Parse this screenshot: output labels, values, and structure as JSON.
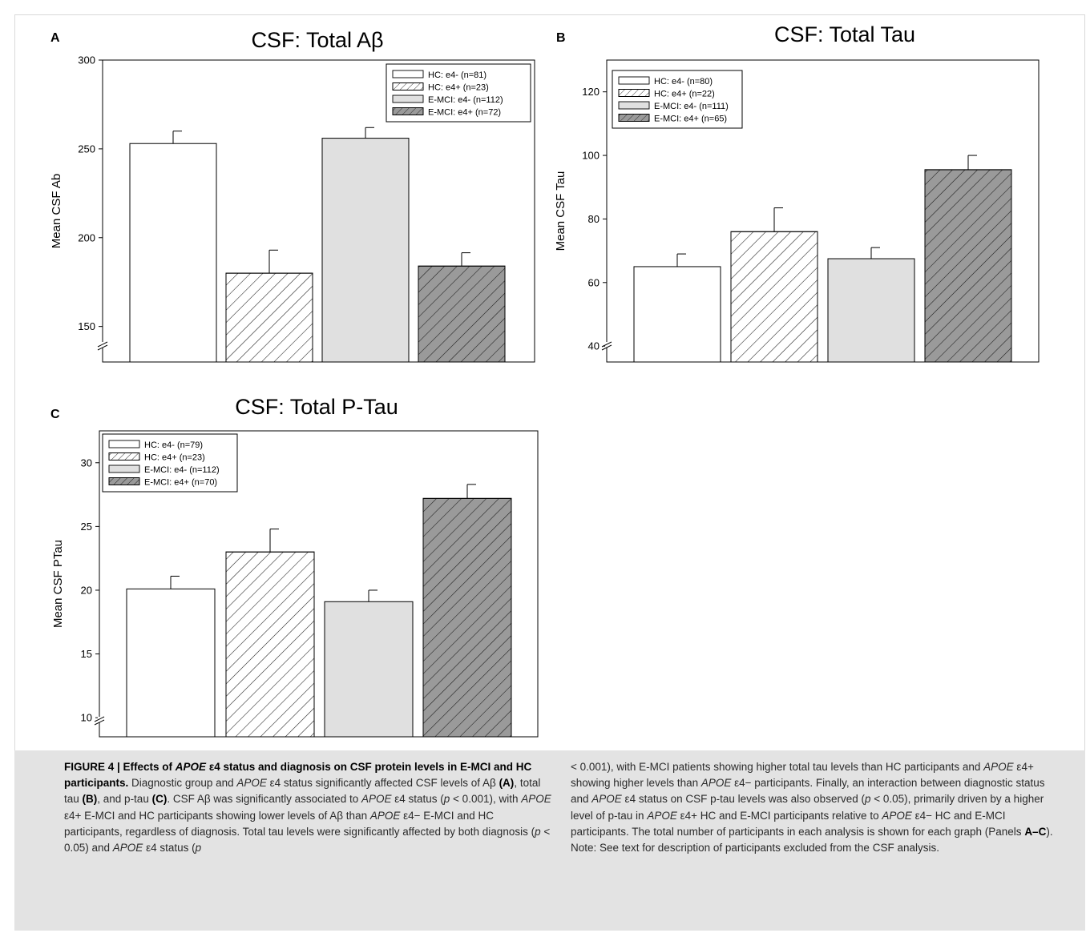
{
  "colors": {
    "hc_e4neg": "#ffffff",
    "hc_e4pos": "#ffffff",
    "emci_e4neg": "#e0e0e0",
    "emci_e4pos": "#9a9a9a",
    "hatch": "#1a1a1a",
    "caption_bg": "#e3e3e3"
  },
  "chart_data": [
    {
      "type": "bar",
      "panel": "A",
      "title": "CSF: Total Aβ",
      "xlabel": "",
      "ylabel": "Mean CSF Ab",
      "ylim": [
        130,
        300
      ],
      "yticks": [
        150,
        200,
        250,
        300
      ],
      "axis_break": true,
      "grid": false,
      "legend_position": "top-right",
      "series": [
        {
          "name": "HC: e4- (n=81)",
          "value": 253,
          "error": 7,
          "fill": "hc_e4neg",
          "hatch": false
        },
        {
          "name": "HC: e4+ (n=23)",
          "value": 180,
          "error": 13,
          "fill": "hc_e4pos",
          "hatch": true
        },
        {
          "name": "E-MCI: e4- (n=112)",
          "value": 256,
          "error": 6,
          "fill": "emci_e4neg",
          "hatch": false
        },
        {
          "name": "E-MCI: e4+ (n=72)",
          "value": 184,
          "error": 7.5,
          "fill": "emci_e4pos",
          "hatch": true
        }
      ]
    },
    {
      "type": "bar",
      "panel": "B",
      "title": "CSF: Total Tau",
      "xlabel": "",
      "ylabel": "Mean CSF Tau",
      "ylim": [
        35,
        130
      ],
      "yticks": [
        40,
        60,
        80,
        100,
        120
      ],
      "axis_break": true,
      "grid": false,
      "legend_position": "top-left",
      "series": [
        {
          "name": "HC: e4- (n=80)",
          "value": 65,
          "error": 4,
          "fill": "hc_e4neg",
          "hatch": false
        },
        {
          "name": "HC: e4+ (n=22)",
          "value": 76,
          "error": 7.5,
          "fill": "hc_e4pos",
          "hatch": true
        },
        {
          "name": "E-MCI: e4- (n=111)",
          "value": 67.5,
          "error": 3.5,
          "fill": "emci_e4neg",
          "hatch": false
        },
        {
          "name": "E-MCI: e4+ (n=65)",
          "value": 95.5,
          "error": 4.5,
          "fill": "emci_e4pos",
          "hatch": true
        }
      ]
    },
    {
      "type": "bar",
      "panel": "C",
      "title": "CSF: Total P-Tau",
      "xlabel": "",
      "ylabel": "Mean CSF PTau",
      "ylim": [
        8.5,
        32.5
      ],
      "yticks": [
        10,
        15,
        20,
        25,
        30
      ],
      "axis_break": true,
      "grid": false,
      "legend_position": "top-left",
      "series": [
        {
          "name": "HC: e4- (n=79)",
          "value": 20.1,
          "error": 1,
          "fill": "hc_e4neg",
          "hatch": false
        },
        {
          "name": "HC: e4+ (n=23)",
          "value": 23,
          "error": 1.8,
          "fill": "hc_e4pos",
          "hatch": true
        },
        {
          "name": "E-MCI: e4- (n=112)",
          "value": 19.1,
          "error": 0.9,
          "fill": "emci_e4neg",
          "hatch": false
        },
        {
          "name": "E-MCI: e4+ (n=70)",
          "value": 27.2,
          "error": 1.1,
          "fill": "emci_e4pos",
          "hatch": true
        }
      ]
    }
  ],
  "caption": {
    "segments": [
      {
        "text": "FIGURE 4 | Effects of ",
        "b": true
      },
      {
        "text": "APOE",
        "b": true,
        "i": true
      },
      {
        "text": " ε4 status and diagnosis on CSF protein levels in E-MCI and HC participants.",
        "b": true
      },
      {
        "text": " Diagnostic group and "
      },
      {
        "text": "APOE",
        "i": true
      },
      {
        "text": " ε4 status significantly affected CSF levels of Aβ "
      },
      {
        "text": "(A)",
        "b": true
      },
      {
        "text": ", total tau "
      },
      {
        "text": "(B)",
        "b": true
      },
      {
        "text": ", and p-tau "
      },
      {
        "text": "(C)",
        "b": true
      },
      {
        "text": ". CSF Aβ was significantly associated to "
      },
      {
        "text": "APOE",
        "i": true
      },
      {
        "text": " ε4 status ("
      },
      {
        "text": "p",
        "i": true
      },
      {
        "text": " < 0.001), with "
      },
      {
        "text": "APOE",
        "i": true
      },
      {
        "text": " ε4+ E-MCI and HC participants showing lower levels of Aβ than "
      },
      {
        "text": "APOE",
        "i": true
      },
      {
        "text": " ε4− E-MCI and HC participants, regardless of diagnosis. Total tau levels were significantly affected by both diagnosis ("
      },
      {
        "text": "p",
        "i": true
      },
      {
        "text": " < 0.05) and "
      },
      {
        "text": "APOE",
        "i": true
      },
      {
        "text": " ε4 status ("
      },
      {
        "text": "p",
        "i": true
      },
      {
        "text": " < 0.001), with E-MCI patients showing higher total tau levels than HC participants and "
      },
      {
        "text": "APOE",
        "i": true
      },
      {
        "text": " ε4+ showing higher levels than "
      },
      {
        "text": "APOE",
        "i": true
      },
      {
        "text": " ε4− participants. Finally, an interaction between diagnostic status and "
      },
      {
        "text": "APOE",
        "i": true
      },
      {
        "text": " ε4 status on CSF p-tau levels was also observed ("
      },
      {
        "text": "p",
        "i": true
      },
      {
        "text": " < 0.05), primarily driven by a higher level of p-tau in "
      },
      {
        "text": "APOE",
        "i": true
      },
      {
        "text": " ε4+ HC and E-MCI participants relative to "
      },
      {
        "text": "APOE",
        "i": true
      },
      {
        "text": " ε4− HC and E-MCI participants. The total number of participants in each analysis is shown for each graph (Panels "
      },
      {
        "text": "A–C",
        "b": true
      },
      {
        "text": "). Note: See text for description of participants excluded from the CSF analysis."
      }
    ]
  }
}
